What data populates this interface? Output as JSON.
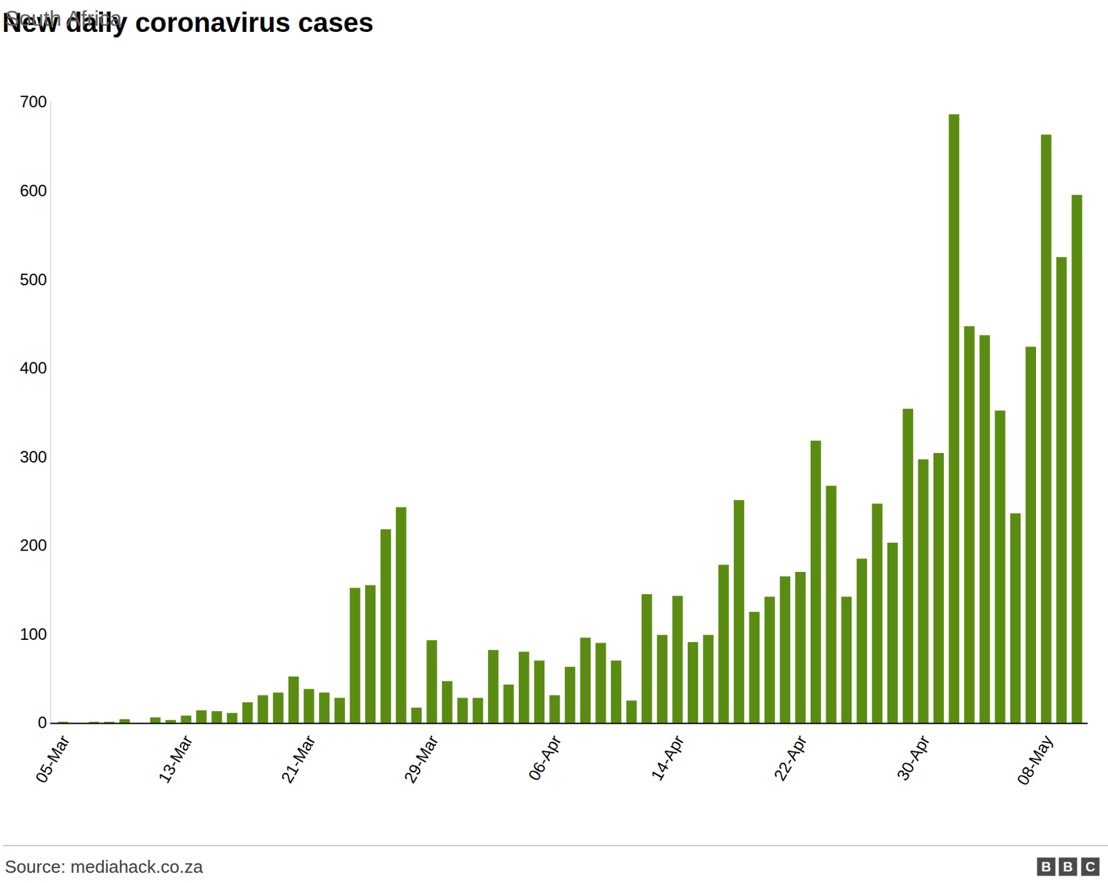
{
  "chart_data": {
    "type": "bar",
    "title": "New daily coronavirus cases",
    "subtitle": "South Africa",
    "source": "Source: mediahack.co.za",
    "logo": "BBC",
    "categories": [
      "05-Mar",
      null,
      null,
      null,
      null,
      null,
      null,
      null,
      "13-Mar",
      null,
      null,
      null,
      null,
      null,
      null,
      null,
      "21-Mar",
      null,
      null,
      null,
      null,
      null,
      null,
      null,
      "29-Mar",
      null,
      null,
      null,
      null,
      null,
      null,
      null,
      "06-Apr",
      null,
      null,
      null,
      null,
      null,
      null,
      null,
      "14-Apr",
      null,
      null,
      null,
      null,
      null,
      null,
      null,
      "22-Apr",
      null,
      null,
      null,
      null,
      null,
      null,
      null,
      "30-Apr",
      null,
      null,
      null,
      null,
      null,
      null,
      null,
      "08-May",
      null,
      null
    ],
    "values": [
      1,
      0,
      1,
      1,
      4,
      0,
      6,
      3,
      8,
      14,
      13,
      11,
      23,
      31,
      34,
      52,
      38,
      34,
      28,
      152,
      155,
      218,
      243,
      17,
      93,
      47,
      28,
      28,
      82,
      43,
      80,
      70,
      31,
      63,
      96,
      90,
      70,
      25,
      145,
      99,
      143,
      91,
      99,
      178,
      251,
      125,
      142,
      165,
      170,
      318,
      267,
      142,
      185,
      247,
      203,
      354,
      297,
      304,
      686,
      447,
      437,
      352,
      236,
      424,
      663,
      525,
      595
    ],
    "color": "#5b8c12",
    "ylim": [
      0,
      700
    ],
    "yticks": [
      0,
      100,
      200,
      300,
      400,
      500,
      600,
      700
    ],
    "grid": false
  }
}
